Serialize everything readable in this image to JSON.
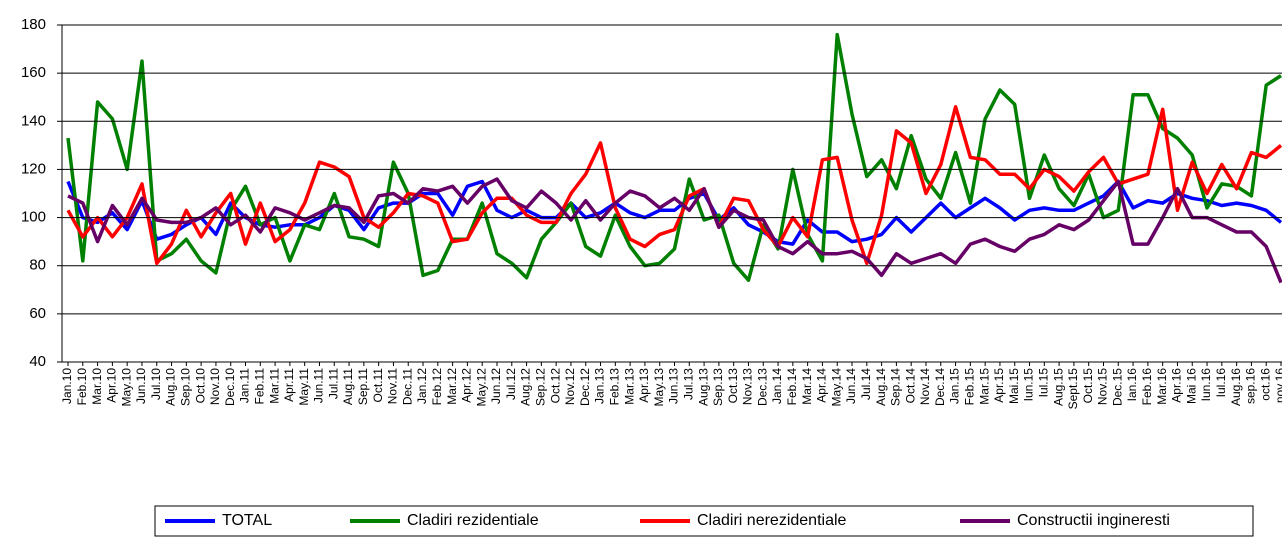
{
  "chart_data": {
    "type": "line",
    "categories": [
      "Jan.10",
      "Feb.10",
      "Mar.10",
      "Apr.10",
      "May.10",
      "Jun.10",
      "Jul.10",
      "Aug.10",
      "Sep.10",
      "Oct.10",
      "Nov.10",
      "Dec.10",
      "Jan.11",
      "Feb.11",
      "Mar.11",
      "Apr.11",
      "May.11",
      "Jun.11",
      "Jul.11",
      "Aug.11",
      "Sep.11",
      "Oct.11",
      "Nov.11",
      "Dec.11",
      "Jan.12",
      "Feb.12",
      "Mar.12",
      "Apr.12",
      "May.12",
      "Jun.12",
      "Jul.12",
      "Aug.12",
      "Sep.12",
      "Oct.12",
      "Nov.12",
      "Dec.12",
      "Jan.13",
      "Feb.13",
      "Mar.13",
      "Apr.13",
      "May.13",
      "Jun.13",
      "Jul.13",
      "Aug.13",
      "Sep.13",
      "Oct.13",
      "Nov.13",
      "Dec.13",
      "Jan.14",
      "Feb.14",
      "Mar.14",
      "Apr.14",
      "May.14",
      "Jun.14",
      "Jul.14",
      "Aug.14",
      "Sep.14",
      "Oct.14",
      "Nov.14",
      "Dec.14",
      "Jan.15",
      "Feb.15",
      "Mar.15",
      "Apr.15",
      "Mai.15",
      "Iun.15",
      "Iul.15",
      "Aug.15",
      "Sept.15",
      "Oct.15",
      "Nov.15",
      "Dec.15",
      "Ian.16",
      "Feb.16",
      "Mar.16",
      "Apr.16",
      "Mai 16",
      "Iun.16",
      "Iul.16",
      "Aug.16",
      "sep.16",
      "oct.16",
      "nov.16"
    ],
    "series": [
      {
        "name": "TOTAL",
        "color": "#0000ff",
        "values": [
          115,
          100,
          98,
          102,
          95,
          107,
          91,
          93,
          97,
          100,
          93,
          106,
          100,
          97,
          96,
          97,
          97,
          100,
          105,
          103,
          95,
          104,
          106,
          106,
          110,
          110,
          101,
          113,
          115,
          103,
          100,
          103,
          100,
          100,
          106,
          100,
          102,
          106,
          102,
          100,
          103,
          103,
          108,
          110,
          99,
          104,
          97,
          94,
          90,
          89,
          99,
          94,
          94,
          90,
          91,
          93,
          100,
          94,
          100,
          106,
          100,
          104,
          108,
          104,
          99,
          103,
          104,
          103,
          103,
          106,
          109,
          115,
          104,
          107,
          106,
          110,
          108,
          107,
          105,
          106,
          105,
          103,
          98
        ]
      },
      {
        "name": "Cladiri rezidentiale",
        "color": "#008000",
        "values": [
          133,
          82,
          148,
          141,
          120,
          165,
          82,
          85,
          91,
          82,
          77,
          103,
          113,
          97,
          100,
          82,
          97,
          95,
          110,
          92,
          91,
          88,
          123,
          110,
          76,
          78,
          91,
          91,
          106,
          85,
          81,
          75,
          91,
          98,
          106,
          88,
          84,
          101,
          88,
          80,
          81,
          87,
          116,
          99,
          101,
          81,
          74,
          97,
          87,
          120,
          93,
          82,
          176,
          143,
          117,
          124,
          112,
          134,
          116,
          108,
          127,
          106,
          141,
          153,
          147,
          108,
          126,
          112,
          105,
          118,
          100,
          103,
          151,
          151,
          137,
          133,
          126,
          104,
          114,
          113,
          109,
          155,
          159
        ]
      },
      {
        "name": "Cladiri nerezidentiale",
        "color": "#ff0000",
        "values": [
          103,
          92,
          100,
          92,
          100,
          114,
          81,
          89,
          103,
          92,
          102,
          110,
          89,
          106,
          90,
          95,
          106,
          123,
          121,
          117,
          100,
          96,
          102,
          110,
          109,
          106,
          90,
          91,
          102,
          108,
          108,
          101,
          98,
          98,
          110,
          118,
          131,
          104,
          91,
          88,
          93,
          95,
          109,
          112,
          96,
          108,
          107,
          95,
          88,
          100,
          92,
          124,
          125,
          99,
          81,
          101,
          136,
          131,
          110,
          122,
          146,
          125,
          124,
          118,
          118,
          112,
          120,
          117,
          111,
          119,
          125,
          114,
          116,
          118,
          145,
          103,
          123,
          110,
          122,
          112,
          127,
          125,
          130
        ]
      },
      {
        "name": "Constructii ingineresti",
        "color": "#660066",
        "values": [
          109,
          106,
          90,
          105,
          97,
          108,
          99,
          98,
          98,
          100,
          104,
          97,
          101,
          94,
          104,
          102,
          99,
          102,
          105,
          104,
          98,
          109,
          110,
          106,
          112,
          111,
          113,
          106,
          113,
          116,
          107,
          104,
          111,
          106,
          99,
          107,
          99,
          106,
          111,
          109,
          104,
          108,
          103,
          112,
          96,
          103,
          100,
          99,
          88,
          85,
          90,
          85,
          85,
          86,
          83,
          76,
          85,
          81,
          83,
          85,
          81,
          89,
          91,
          88,
          86,
          91,
          93,
          97,
          95,
          99,
          107,
          115,
          89,
          89,
          100,
          112,
          100,
          100,
          97,
          94,
          94,
          88,
          73
        ]
      }
    ],
    "ylim": [
      40,
      180
    ],
    "yticks": [
      40,
      60,
      80,
      100,
      120,
      140,
      160,
      180
    ],
    "grid": true,
    "legend": "bottom"
  }
}
